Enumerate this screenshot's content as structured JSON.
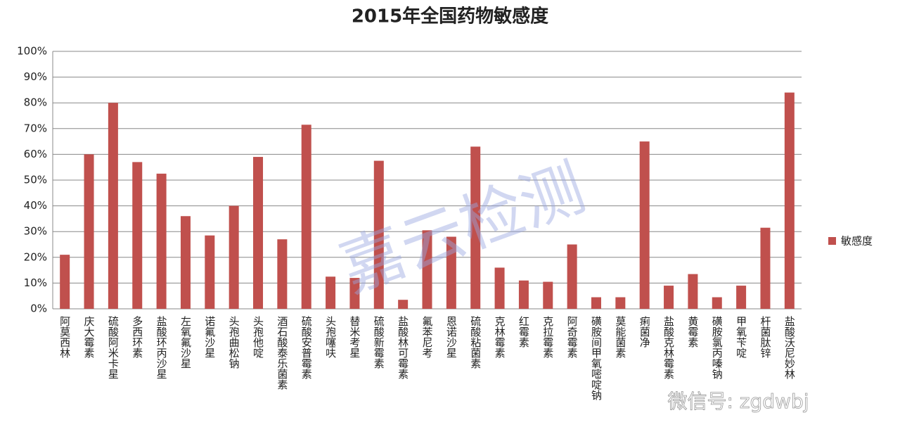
{
  "chart_data": {
    "type": "bar",
    "title": "2015年全国药物敏感度",
    "categories": [
      "阿莫西林",
      "庆大霉素",
      "硫酸阿米卡星",
      "多西环素",
      "盐酸环丙沙星",
      "左氧氟沙星",
      "诺氟沙星",
      "头孢曲松钠",
      "头孢他啶",
      "酒石酸泰乐菌素",
      "硫酸安普霉素",
      "头孢噻呋",
      "替米考星",
      "硫酸新霉素",
      "盐酸林可霉素",
      "氟苯尼考",
      "恩诺沙星",
      "硫酸粘菌素",
      "克林霉素",
      "红霉素",
      "克拉霉素",
      "阿奇霉素",
      "磺胺间甲氧嘧啶钠",
      "莫能菌素",
      "痢菌净",
      "盐酸克林霉素",
      "黄霉素",
      "磺胺氯丙嗪钠",
      "甲氧苄啶",
      "杆菌肽锌",
      "盐酸沃尼妙林"
    ],
    "series": [
      {
        "name": "敏感度",
        "color": "#c0504d",
        "values": [
          21,
          60,
          80,
          57,
          52.5,
          36,
          28.5,
          40,
          59,
          27,
          71.5,
          12.5,
          12,
          57.5,
          3.5,
          30.5,
          28,
          63,
          16,
          11,
          10.5,
          25,
          4.5,
          4.5,
          65,
          9,
          13.5,
          4.5,
          9,
          31.5,
          84
        ]
      }
    ],
    "ylim": [
      0,
      100
    ],
    "yticks": [
      {
        "value": 0,
        "label": "0%"
      },
      {
        "value": 10,
        "label": "10%"
      },
      {
        "value": 20,
        "label": "20%"
      },
      {
        "value": 30,
        "label": "30%"
      },
      {
        "value": 40,
        "label": "40%"
      },
      {
        "value": 50,
        "label": "50%"
      },
      {
        "value": 60,
        "label": "60%"
      },
      {
        "value": 70,
        "label": "70%"
      },
      {
        "value": 80,
        "label": "80%"
      },
      {
        "value": 90,
        "label": "90%"
      },
      {
        "value": 100,
        "label": "100%"
      }
    ],
    "grid": true,
    "legend": "right",
    "annotations": [
      "嘉云检测",
      "微信号: zgdwbj"
    ]
  }
}
